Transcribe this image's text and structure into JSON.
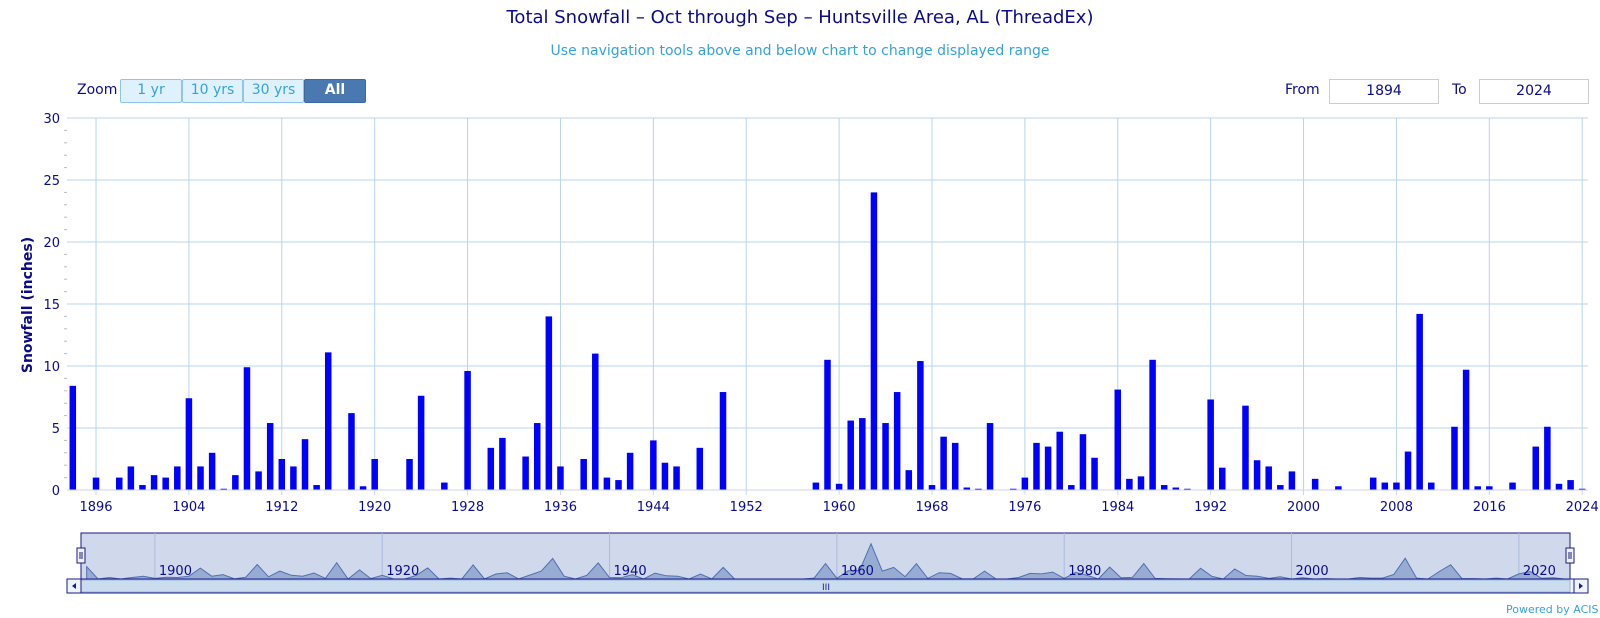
{
  "header": {
    "title": "Total Snowfall – Oct through Sep – Huntsville Area, AL (ThreadEx)",
    "subtitle": "Use navigation tools above and below chart to change displayed range"
  },
  "zoom": {
    "label": "Zoom",
    "buttons": [
      "1 yr",
      "10 yrs",
      "30 yrs",
      "All"
    ],
    "active": "All"
  },
  "range": {
    "from_label": "From",
    "from_value": "1894",
    "to_label": "To",
    "to_value": "2024"
  },
  "navigator": {
    "tick_labels": [
      "1900",
      "1920",
      "1940",
      "1960",
      "1980",
      "2000",
      "2020"
    ],
    "scroll_grip": "III"
  },
  "credit": "Powered by ACIS",
  "colors": {
    "bar": "#0000ff",
    "grid": "#b8d4ec",
    "axis_text": "#0b0b8a",
    "navigator_fill": "#8ea4cf",
    "navigator_bg": "#d0d8ec"
  },
  "chart_data": {
    "type": "bar",
    "title": "Total Snowfall – Oct through Sep – Huntsville Area, AL (ThreadEx)",
    "ylabel": "Snowfall (inches)",
    "xlabel": "",
    "ylim": [
      0,
      30
    ],
    "xlim": [
      1894,
      2024
    ],
    "x_tick_labels": [
      "1896",
      "1904",
      "1912",
      "1920",
      "1928",
      "1936",
      "1944",
      "1952",
      "1960",
      "1968",
      "1976",
      "1984",
      "1992",
      "2000",
      "2008",
      "2016",
      "2024"
    ],
    "y_tick_labels": [
      "0",
      "5",
      "10",
      "15",
      "20",
      "25",
      "30"
    ],
    "grid": true,
    "series": [
      {
        "x": [
          1894,
          1896,
          1898,
          1899,
          1900,
          1901,
          1902,
          1903,
          1904,
          1905,
          1906,
          1907,
          1908,
          1909,
          1910,
          1911,
          1912,
          1913,
          1914,
          1915,
          1916,
          1918,
          1919,
          1920,
          1923,
          1924,
          1926,
          1928,
          1930,
          1931,
          1933,
          1934,
          1935,
          1936,
          1938,
          1939,
          1940,
          1941,
          1942,
          1944,
          1945,
          1946,
          1948,
          1950,
          1958,
          1959,
          1960,
          1961,
          1962,
          1963,
          1964,
          1965,
          1966,
          1967,
          1968,
          1969,
          1970,
          1971,
          1972,
          1973,
          1975,
          1976,
          1977,
          1978,
          1979,
          1980,
          1981,
          1982,
          1984,
          1985,
          1986,
          1987,
          1988,
          1989,
          1990,
          1992,
          1993,
          1995,
          1996,
          1997,
          1998,
          1999,
          2001,
          2003,
          2006,
          2007,
          2008,
          2009,
          2010,
          2011,
          2013,
          2014,
          2015,
          2016,
          2018,
          2020,
          2021,
          2022,
          2023,
          2024
        ],
        "values": [
          8.4,
          1.0,
          1.0,
          1.9,
          0.4,
          1.2,
          1.0,
          1.9,
          7.4,
          1.9,
          3.0,
          0.1,
          1.2,
          9.9,
          1.5,
          5.4,
          2.5,
          1.9,
          4.1,
          0.4,
          11.1,
          6.2,
          0.3,
          2.5,
          2.5,
          7.6,
          0.6,
          9.6,
          3.4,
          4.2,
          2.7,
          5.4,
          14.0,
          1.9,
          2.5,
          11.0,
          1.0,
          0.8,
          3.0,
          4.0,
          2.2,
          1.9,
          3.4,
          7.9,
          0.6,
          10.5,
          0.5,
          5.6,
          5.8,
          24.0,
          5.4,
          7.9,
          1.6,
          10.4,
          0.4,
          4.3,
          3.8,
          0.2,
          0.1,
          5.4,
          0.1,
          1.0,
          3.8,
          3.5,
          4.7,
          0.4,
          4.5,
          2.6,
          8.1,
          0.9,
          1.1,
          10.5,
          0.4,
          0.2,
          0.1,
          7.3,
          1.8,
          6.8,
          2.4,
          1.9,
          0.4,
          1.5,
          0.9,
          0.3,
          1.0,
          0.6,
          0.6,
          3.1,
          14.2,
          0.6,
          5.1,
          9.7,
          0.3,
          0.3,
          0.6,
          3.5,
          5.1,
          0.5,
          0.8,
          0.1
        ]
      }
    ]
  }
}
